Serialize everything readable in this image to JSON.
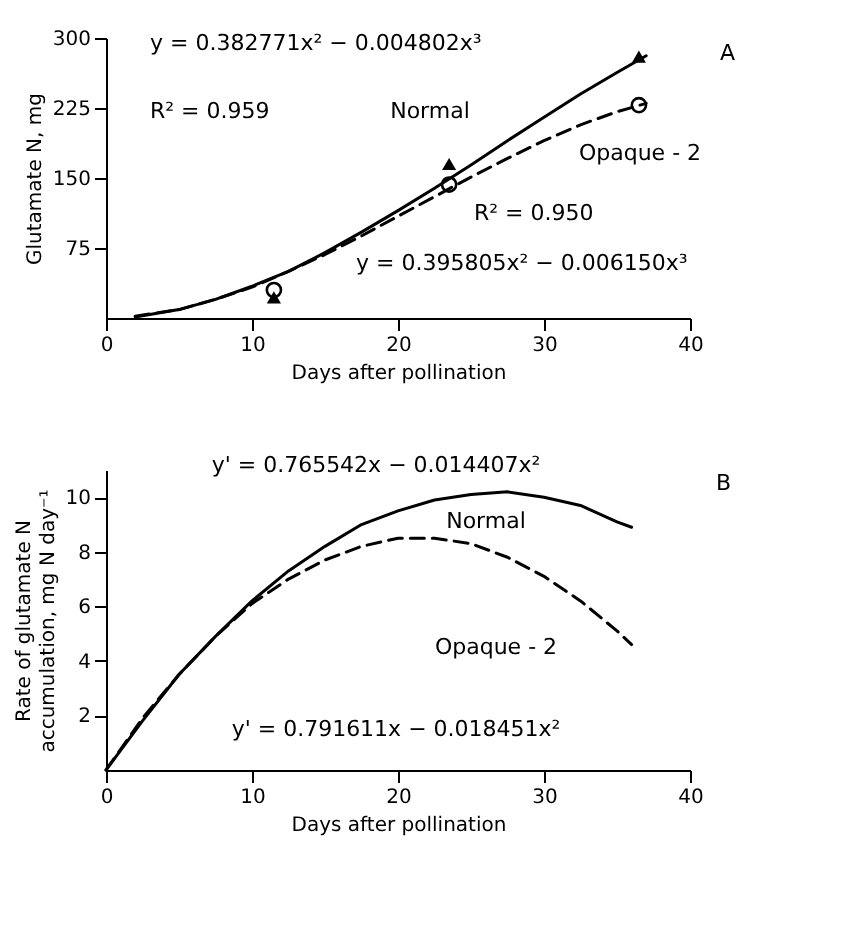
{
  "chart_data": [
    {
      "type": "line",
      "xlabel": "Days after pollination",
      "ylabel": "Glutamate N, mg",
      "xlim": [
        0,
        40
      ],
      "ylim": [
        0,
        300
      ],
      "xticks": [
        0,
        10,
        20,
        30,
        40
      ],
      "yticks": [
        75,
        150,
        225,
        300
      ],
      "annotations": [
        "y = 0.382771x² − 0.004802x³",
        "R² = 0.959",
        "R² = 0.950",
        "y = 0.395805x² − 0.006150x³",
        "A"
      ],
      "series": [
        {
          "name": "Normal",
          "color": "#000000",
          "line_style": "solid",
          "x": [
            2,
            5,
            7.5,
            10,
            12.5,
            15,
            17.5,
            20,
            22.5,
            25,
            27.5,
            30,
            32.5,
            35,
            37
          ],
          "values": [
            1,
            9,
            20,
            34,
            50,
            70,
            92,
            115,
            139,
            164,
            190,
            215,
            240,
            263,
            281
          ]
        },
        {
          "name": "Opaque - 2",
          "color": "#000000",
          "line_style": "dashed",
          "x": [
            2,
            5,
            7.5,
            10,
            12.5,
            15,
            17.5,
            20,
            22.5,
            25,
            27.5,
            30,
            32.5,
            35,
            37
          ],
          "values": [
            2,
            9,
            20,
            33,
            50,
            68,
            88,
            109,
            130,
            151,
            171,
            190,
            207,
            221,
            230
          ]
        },
        {
          "type": "scatter",
          "color": "#000000",
          "marker": "triangle",
          "x": [
            11.5,
            23.5,
            36.5
          ],
          "values": [
            22,
            165,
            280
          ]
        },
        {
          "type": "scatter",
          "color": "#000000",
          "marker": "circle",
          "x": [
            11.5,
            23.5,
            36.5
          ],
          "values": [
            30,
            143,
            228
          ]
        }
      ]
    },
    {
      "type": "line",
      "xlabel": "Days after pollination",
      "ylabel": "Rate of glutamate N accumulation, mg N day⁻¹",
      "xlim": [
        0,
        40
      ],
      "ylim": [
        0,
        11
      ],
      "xticks": [
        0,
        10,
        20,
        30,
        40
      ],
      "yticks": [
        2,
        4,
        6,
        8,
        10
      ],
      "annotations": [
        "y' = 0.765542x − 0.014407x²",
        "y' = 0.791611x − 0.018451x²",
        "B"
      ],
      "series": [
        {
          "name": "Normal",
          "color": "#000000",
          "line_style": "solid",
          "x": [
            0,
            2.5,
            5,
            7.5,
            10,
            12.5,
            15,
            17.5,
            20,
            22.5,
            25,
            27.5,
            30,
            32.5,
            35,
            36
          ],
          "values": [
            0,
            1.8,
            3.5,
            4.9,
            6.2,
            7.3,
            8.2,
            9.0,
            9.5,
            9.9,
            10.1,
            10.2,
            10.0,
            9.7,
            9.1,
            8.9
          ]
        },
        {
          "name": "Opaque - 2",
          "color": "#000000",
          "line_style": "dashed",
          "x": [
            0,
            2.5,
            5,
            7.5,
            10,
            12.5,
            15,
            17.5,
            20,
            22.5,
            25,
            27.5,
            30,
            32.5,
            35,
            36
          ],
          "values": [
            0,
            1.9,
            3.5,
            4.9,
            6.1,
            7.0,
            7.7,
            8.2,
            8.5,
            8.5,
            8.3,
            7.8,
            7.1,
            6.2,
            5.1,
            4.6
          ]
        }
      ]
    }
  ]
}
